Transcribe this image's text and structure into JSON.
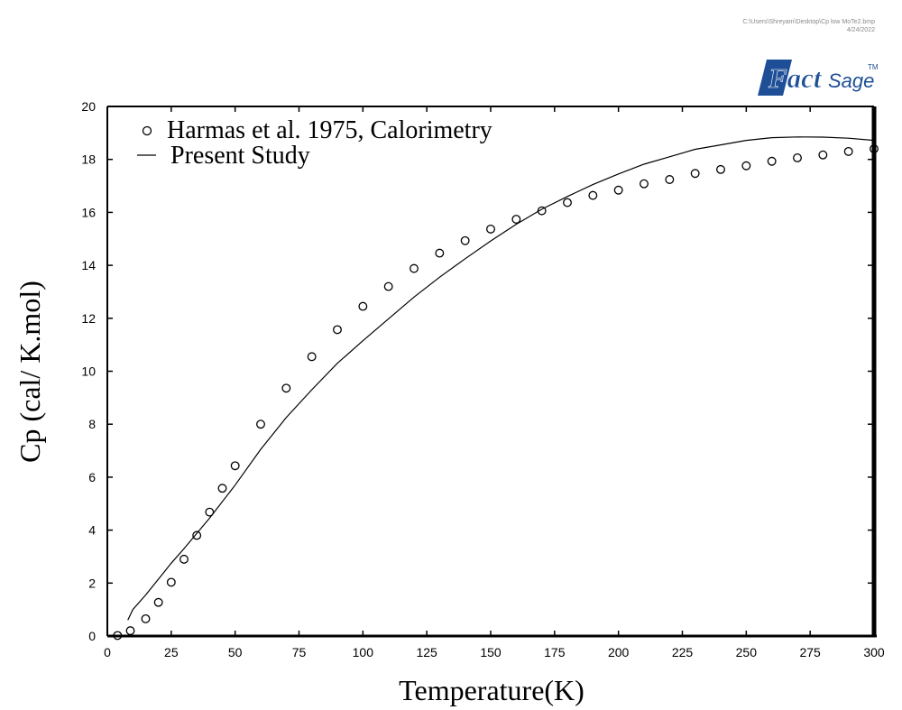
{
  "header": {
    "file_path": "C:\\Users\\Shreyam\\Desktop\\Cp low MoTe2.bmp",
    "date": "4/24/2022",
    "logo_fact": "Fact",
    "logo_sage": "Sage",
    "logo_tm": "TM"
  },
  "chart_data": {
    "type": "scatter",
    "xlabel": "Temperature(K)",
    "ylabel": "Cp (cal/ K.mol)",
    "xlim": [
      0,
      300
    ],
    "ylim": [
      0,
      20
    ],
    "xticks": [
      0,
      25,
      50,
      75,
      100,
      125,
      150,
      175,
      200,
      225,
      250,
      275,
      300
    ],
    "yticks": [
      0,
      2,
      4,
      6,
      8,
      10,
      12,
      14,
      16,
      18,
      20
    ],
    "legend_position": "top-left",
    "series": [
      {
        "name": "Harmas et al. 1975, Calorimetry",
        "marker": "open-circle",
        "x": [
          4,
          9,
          15,
          20,
          25,
          30,
          35,
          40,
          45,
          50,
          60,
          70,
          80,
          90,
          100,
          110,
          120,
          130,
          140,
          150,
          160,
          170,
          180,
          190,
          200,
          210,
          220,
          230,
          240,
          250,
          260,
          270,
          280,
          290,
          300
        ],
        "y": [
          0.02,
          0.2,
          0.65,
          1.27,
          2.03,
          2.9,
          3.8,
          4.68,
          5.58,
          6.43,
          8.0,
          9.36,
          10.55,
          11.57,
          12.45,
          13.2,
          13.88,
          14.46,
          14.93,
          15.37,
          15.74,
          16.06,
          16.37,
          16.64,
          16.84,
          17.08,
          17.24,
          17.47,
          17.62,
          17.76,
          17.93,
          18.06,
          18.17,
          18.3,
          18.4
        ]
      },
      {
        "name": "Present Study",
        "marker": "line",
        "x": [
          8,
          10,
          15,
          20,
          25,
          30,
          40,
          50,
          60,
          70,
          80,
          90,
          100,
          110,
          120,
          130,
          140,
          150,
          160,
          170,
          180,
          190,
          200,
          210,
          220,
          230,
          240,
          250,
          260,
          270,
          280,
          290,
          300
        ],
        "y": [
          0.6,
          1.0,
          1.55,
          2.15,
          2.75,
          3.3,
          4.45,
          5.7,
          7.05,
          8.25,
          9.3,
          10.3,
          11.15,
          11.98,
          12.8,
          13.55,
          14.25,
          14.92,
          15.55,
          16.12,
          16.6,
          17.05,
          17.45,
          17.82,
          18.1,
          18.38,
          18.55,
          18.72,
          18.82,
          18.85,
          18.84,
          18.8,
          18.72
        ]
      }
    ]
  }
}
